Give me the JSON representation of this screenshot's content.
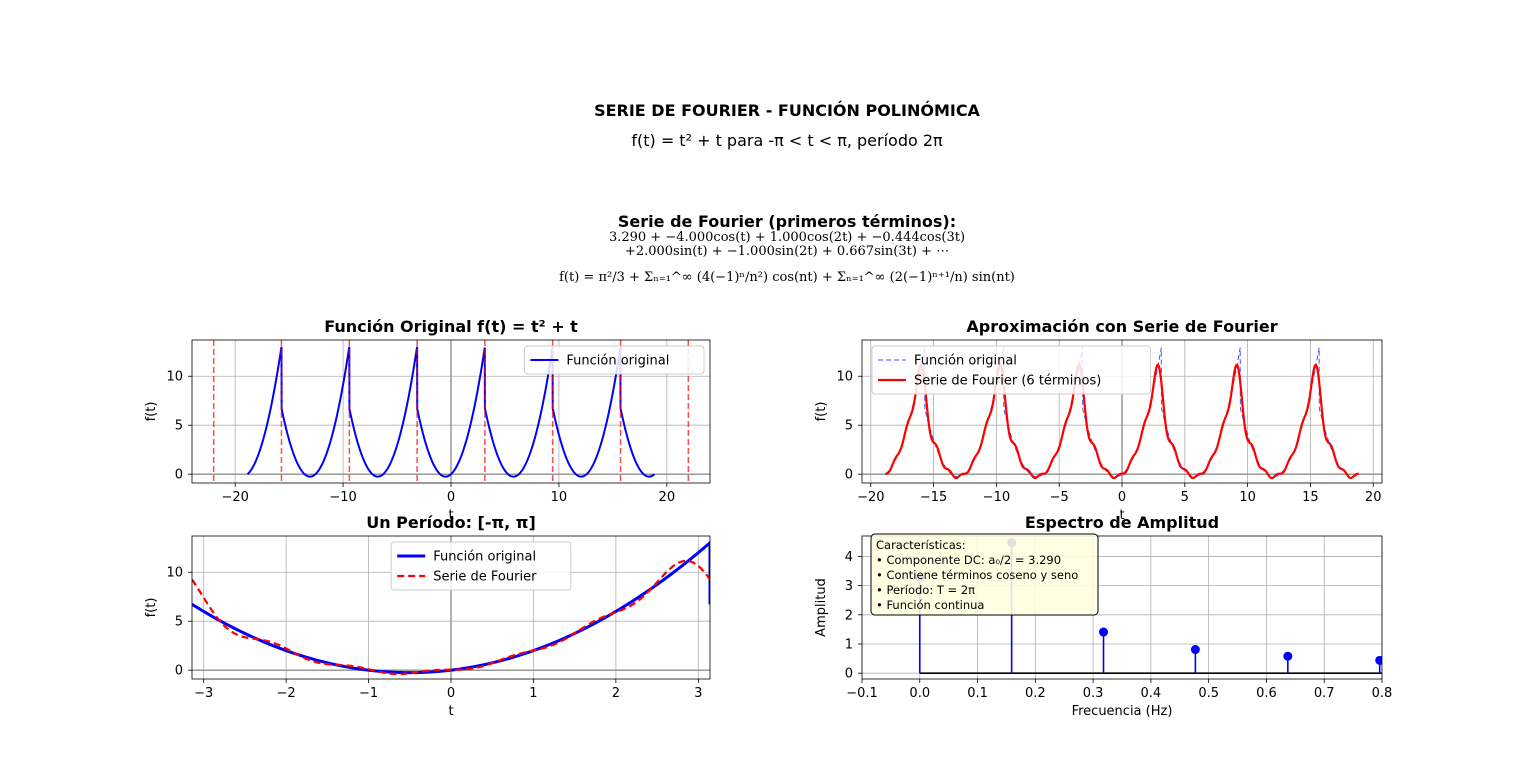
{
  "figure": {
    "title": "SERIE DE FOURIER - FUNCIÓN POLINÓMICA",
    "subtitle": "f(t) = t² + t para -π < t < π, período 2π",
    "series_title": "Serie de Fourier (primeros términos):",
    "formula_line1": "3.290 + −4.000cos(t) + 1.000cos(2t) + −0.444cos(3t)",
    "formula_line2": "+2.000sin(t) + −1.000sin(2t) + 0.667sin(3t) + ⋯",
    "formula_general": "f(t) = π²/3 + Σₙ₌₁^∞ (4(−1)ⁿ/n²) cos(nt) + Σₙ₌₁^∞ (2(−1)ⁿ⁺¹/n) sin(nt)"
  },
  "colors": {
    "original": "#0000ff",
    "fourier": "#ff0000",
    "period_marker": "#ff0000",
    "stem": "#0000ff",
    "grid": "#b0b0b0",
    "zero_line": "#808080",
    "infobox_bg": "#ffffe0"
  },
  "chart_data": [
    {
      "id": "original",
      "type": "line",
      "title": "Función Original f(t) = t² + t",
      "xlabel": "t",
      "ylabel": "f(t)",
      "xlim": [
        -24,
        24
      ],
      "ylim": [
        -0.9,
        13.7
      ],
      "xticks": [
        -20,
        -10,
        0,
        10,
        20
      ],
      "yticks": [
        0,
        5,
        10
      ],
      "t_range": [
        -18.85,
        18.85
      ],
      "series": [
        {
          "name": "Función original"
        }
      ],
      "period_markers": [
        -21.99,
        -15.71,
        -9.42,
        -3.14,
        3.14,
        9.42,
        15.71,
        21.99
      ],
      "grid": true,
      "legend": "upper right"
    },
    {
      "id": "approx",
      "type": "line",
      "title": "Aproximación con Serie de Fourier",
      "xlabel": "t",
      "ylabel": "f(t)",
      "xlim": [
        -20.7,
        20.7
      ],
      "ylim": [
        -0.9,
        13.7
      ],
      "xticks": [
        -20,
        -15,
        -10,
        -5,
        0,
        5,
        10,
        15,
        20
      ],
      "yticks": [
        0,
        5,
        10
      ],
      "t_range": [
        -18.85,
        18.85
      ],
      "n_terms": 6,
      "series": [
        {
          "name": "Función original"
        },
        {
          "name": "Serie de Fourier (6 términos)"
        }
      ],
      "grid": true,
      "legend": "upper left"
    },
    {
      "id": "period",
      "type": "line",
      "title": "Un Período: [-π, π]",
      "xlabel": "t",
      "ylabel": "f(t)",
      "xlim": [
        -3.1416,
        3.1416
      ],
      "ylim": [
        -0.9,
        13.7
      ],
      "xticks": [
        -3,
        -2,
        -1,
        0,
        1,
        2,
        3
      ],
      "yticks": [
        0,
        5,
        10
      ],
      "n_terms": 6,
      "series": [
        {
          "name": "Función original"
        },
        {
          "name": "Serie de Fourier"
        }
      ],
      "grid": true,
      "legend": "upper center"
    },
    {
      "id": "spectrum",
      "type": "stem",
      "title": "Espectro de Amplitud",
      "xlabel": "Frecuencia (Hz)",
      "ylabel": "Amplitud",
      "xlim": [
        -0.1,
        0.8
      ],
      "ylim": [
        -0.2,
        4.7
      ],
      "xticks": [
        -0.1,
        0.0,
        0.1,
        0.2,
        0.3,
        0.4,
        0.5,
        0.6,
        0.7,
        0.8
      ],
      "xtick_labels": [
        "−0.1",
        "0.0",
        "0.1",
        "0.2",
        "0.3",
        "0.4",
        "0.5",
        "0.6",
        "0.7",
        "0.8"
      ],
      "yticks": [
        0,
        1,
        2,
        3,
        4
      ],
      "x": [
        0.0,
        0.159,
        0.318,
        0.477,
        0.637,
        0.796
      ],
      "values": [
        3.29,
        4.47,
        1.41,
        0.81,
        0.58,
        0.44
      ],
      "grid": true
    }
  ],
  "infobox": {
    "lines": [
      "Características:",
      "• Componente DC: a₀/2 = 3.290",
      "• Contiene términos coseno y seno",
      "• Período: T = 2π",
      "• Función continua"
    ]
  }
}
